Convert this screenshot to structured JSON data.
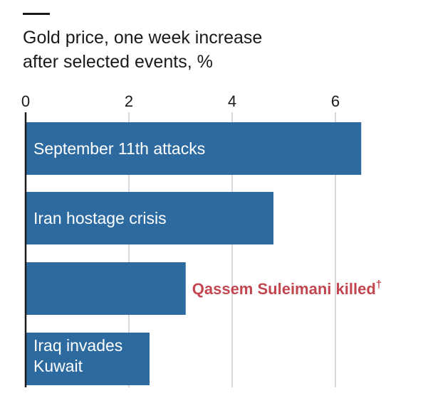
{
  "title_lines": [
    "Gold price, one week increase",
    "after selected events, %"
  ],
  "chart_data": {
    "type": "bar",
    "orientation": "horizontal",
    "title": "Gold price, one week increase after selected events, %",
    "xlim": [
      0,
      7.5
    ],
    "xticks": [
      0,
      2,
      4,
      6
    ],
    "grid": true,
    "categories": [
      "September 11th attacks",
      "Iran hostage crisis",
      "Qassem Suleimani killed†",
      "Iraq invades Kuwait"
    ],
    "values": [
      6.5,
      4.8,
      3.1,
      2.4
    ],
    "label_lines": [
      [
        "September 11th attacks"
      ],
      [
        "Iran hostage crisis"
      ],
      [
        "Qassem Suleimani killed",
        "†"
      ],
      [
        "Iraq invades",
        "Kuwait"
      ]
    ],
    "label_inside": [
      true,
      true,
      false,
      true
    ],
    "colors": {
      "bar": "#2d6a9f",
      "highlight_label": "#c2464f",
      "label_inside": "#ffffff",
      "axis": "#1a1a1a",
      "grid": "#c9ccd1"
    }
  }
}
